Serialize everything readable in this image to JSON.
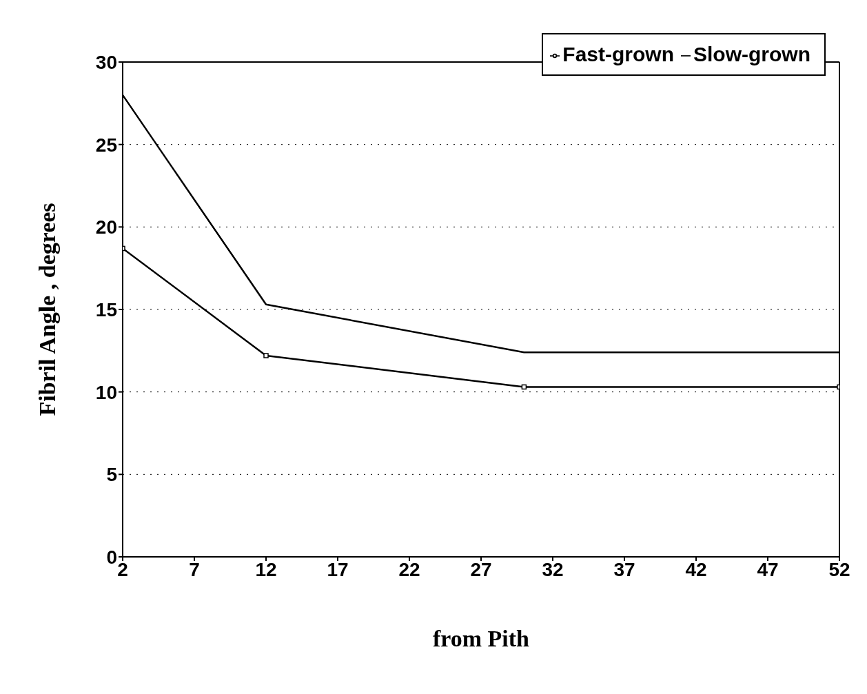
{
  "chart_data": {
    "type": "line",
    "xlabel": "from Pith",
    "ylabel": "Fibril Angle , degrees",
    "x": [
      2,
      12,
      30,
      52
    ],
    "series": [
      {
        "name": "Fast-grown",
        "color": "#000000",
        "marker": "square",
        "values": [
          18.7,
          12.2,
          10.3,
          10.3
        ]
      },
      {
        "name": "Slow-grown",
        "color": "#000000",
        "marker": "none",
        "values": [
          28,
          15.3,
          12.4,
          12.4
        ]
      }
    ],
    "xlim": [
      2,
      52
    ],
    "xticks": [
      2,
      7,
      12,
      17,
      22,
      27,
      32,
      37,
      42,
      47,
      52
    ],
    "ylim": [
      0,
      30
    ],
    "yticks": [
      0,
      5,
      10,
      15,
      20,
      25,
      30
    ],
    "grid": "y",
    "legend": "top right",
    "line_style": "solid"
  }
}
